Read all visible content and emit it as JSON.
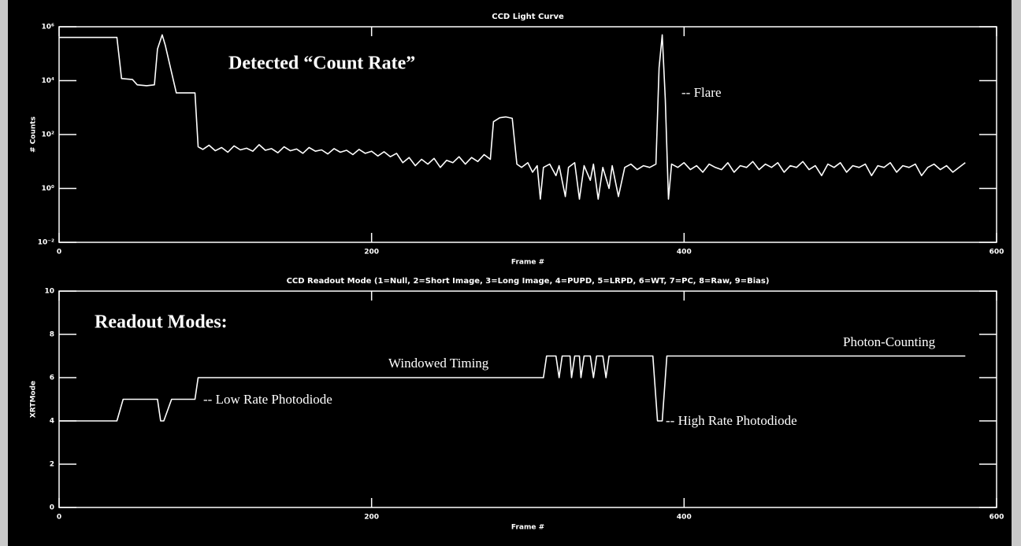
{
  "chart_data": [
    {
      "type": "line",
      "title": "CCD Light Curve",
      "x_label": "Frame #",
      "y_label": "# Counts",
      "log_scale": true,
      "color": "#ffffff",
      "xlim": [
        0,
        600
      ],
      "xticks": [
        0,
        200,
        400,
        600
      ],
      "ylim": [
        0.01,
        1000000
      ],
      "yticks": [
        {
          "value": 0.01,
          "label": "10⁻²"
        },
        {
          "value": 1,
          "label": "10⁰"
        },
        {
          "value": 100,
          "label": "10²"
        },
        {
          "value": 10000,
          "label": "10⁴"
        },
        {
          "value": 1000000,
          "label": "10⁶"
        }
      ],
      "annotations": [
        "Detected “Count Rate”",
        "-- Flare"
      ],
      "x": [
        0,
        37,
        40,
        47,
        50,
        56,
        61,
        63,
        66,
        68,
        72,
        75,
        87,
        89,
        92,
        96,
        100,
        104,
        108,
        112,
        116,
        120,
        124,
        128,
        132,
        136,
        140,
        144,
        148,
        152,
        156,
        160,
        164,
        168,
        172,
        176,
        180,
        184,
        188,
        192,
        196,
        200,
        204,
        208,
        212,
        216,
        220,
        224,
        228,
        232,
        236,
        240,
        244,
        248,
        252,
        256,
        260,
        264,
        268,
        272,
        276,
        278,
        282,
        286,
        290,
        293,
        296,
        300,
        303,
        306,
        308,
        310,
        314,
        318,
        320,
        324,
        326,
        330,
        333,
        336,
        340,
        342,
        345,
        348,
        352,
        354,
        358,
        362,
        366,
        370,
        374,
        378,
        382,
        384,
        386,
        388,
        390,
        392,
        396,
        400,
        404,
        408,
        412,
        416,
        420,
        424,
        428,
        432,
        436,
        440,
        444,
        448,
        452,
        456,
        460,
        464,
        468,
        472,
        476,
        480,
        484,
        488,
        492,
        496,
        500,
        504,
        508,
        512,
        516,
        520,
        524,
        528,
        532,
        536,
        540,
        544,
        548,
        552,
        556,
        560,
        564,
        568,
        572,
        576,
        580
      ],
      "values": [
        400000,
        400000,
        12000,
        11000,
        7000,
        6500,
        7000,
        150000,
        500000,
        200000,
        20000,
        3500,
        3500,
        35,
        28,
        40,
        25,
        33,
        22,
        38,
        27,
        31,
        24,
        42,
        26,
        30,
        21,
        35,
        25,
        29,
        20,
        33,
        24,
        27,
        19,
        30,
        22,
        26,
        18,
        28,
        20,
        24,
        16,
        23,
        15,
        20,
        9,
        14,
        7,
        12,
        8,
        13,
        6,
        11,
        9,
        15,
        8,
        14,
        10,
        18,
        12,
        300,
        420,
        450,
        400,
        8,
        6,
        9,
        4,
        7,
        0.4,
        6,
        8,
        3,
        7,
        0.5,
        6,
        9,
        0.4,
        7,
        2,
        8,
        0.4,
        6,
        1,
        7,
        0.5,
        6,
        8,
        5,
        7,
        6,
        8,
        30000,
        500000,
        2000,
        0.4,
        8,
        6,
        9,
        5,
        7,
        4,
        8,
        6,
        5,
        9,
        4,
        7,
        6,
        10,
        5,
        8,
        6,
        9,
        4,
        7,
        6,
        10,
        5,
        7,
        3,
        8,
        6,
        9,
        4,
        7,
        6,
        8,
        3,
        7,
        6,
        9,
        4,
        7,
        6,
        8,
        3,
        6,
        8,
        5,
        7,
        4,
        6,
        9
      ]
    },
    {
      "type": "line",
      "title": "CCD Readout Mode (1=Null, 2=Short Image, 3=Long Image, 4=PUPD, 5=LRPD, 6=WT, 7=PC, 8=Raw, 9=Bias)",
      "x_label": "Frame #",
      "y_label": "XRTMode",
      "log_scale": false,
      "color": "#ffffff",
      "xlim": [
        0,
        600
      ],
      "xticks": [
        0,
        200,
        400,
        600
      ],
      "ylim": [
        0,
        10
      ],
      "yticks": [
        0,
        2,
        4,
        6,
        8,
        10
      ],
      "annotations": [
        "Readout Modes:",
        "Windowed Timing",
        "-- Low Rate Photodiode",
        "Photon-Counting",
        "-- High Rate Photodiode"
      ],
      "x": [
        0,
        37,
        41,
        63,
        65,
        67,
        72,
        77,
        87,
        89,
        310,
        312,
        318,
        320,
        322,
        327,
        328,
        330,
        333,
        334,
        336,
        340,
        342,
        344,
        348,
        350,
        352,
        356,
        380,
        383,
        386,
        389,
        580
      ],
      "values": [
        4,
        4,
        5,
        5,
        4,
        4,
        5,
        5,
        5,
        6,
        6,
        7,
        7,
        6,
        7,
        7,
        6,
        7,
        7,
        6,
        7,
        7,
        6,
        7,
        7,
        6,
        7,
        7,
        7,
        4,
        4,
        7,
        7
      ]
    }
  ]
}
